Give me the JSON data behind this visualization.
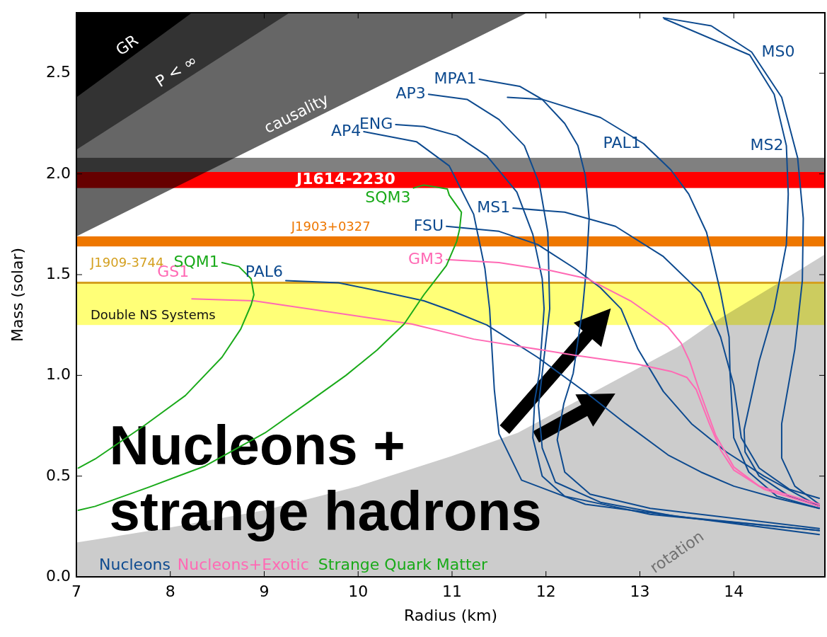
{
  "chart_data": {
    "type": "line",
    "xlabel": "Radius (km)",
    "ylabel": "Mass (solar)",
    "xlim": [
      7,
      14.97
    ],
    "ylim": [
      0,
      2.8
    ],
    "xticks": [
      7,
      8,
      9,
      10,
      11,
      12,
      13,
      14
    ],
    "yticks": [
      {
        "value": 0,
        "label": "0.0"
      },
      {
        "value": 0.5,
        "label": "0.5"
      },
      {
        "value": 1,
        "label": "1.0"
      },
      {
        "value": 1.5,
        "label": "1.5"
      },
      {
        "value": 2,
        "label": "2.0"
      },
      {
        "value": 2.5,
        "label": "2.5"
      }
    ],
    "series": [
      {
        "type": "area",
        "name": "rotation",
        "color": "#cccccc",
        "x": [
          7,
          8,
          9,
          10,
          11,
          11.7,
          13.4,
          13.74,
          14.48,
          14.97
        ],
        "values": [
          0.17,
          0.245,
          0.33,
          0.45,
          0.6,
          0.715,
          1.14,
          1.25,
          1.46,
          1.6
        ]
      },
      {
        "type": "area",
        "name": "causality",
        "color": "#666666",
        "x": [
          7,
          11.8
        ],
        "values": [
          1.69,
          2.8
        ]
      },
      {
        "type": "area",
        "name": "P < ∞",
        "color": "#333333",
        "x": [
          7,
          9.27
        ],
        "values": [
          2.12,
          2.8
        ]
      },
      {
        "type": "area",
        "name": "GR",
        "color": "#000000",
        "x": [
          7,
          8.23
        ],
        "values": [
          2.38,
          2.8
        ]
      },
      {
        "name": "AP4",
        "color": "#0d4a8f",
        "x": [
          10.06,
          10.62,
          10.97,
          11.23,
          11.35,
          11.4,
          11.45,
          11.5,
          11.74,
          12.42,
          14.91
        ],
        "values": [
          2.21,
          2.16,
          2.04,
          1.8,
          1.53,
          1.33,
          0.93,
          0.71,
          0.48,
          0.36,
          0.21
        ]
      },
      {
        "name": "ENG",
        "color": "#0d4a8f",
        "x": [
          10.4,
          10.7,
          11.05,
          11.37,
          11.69,
          11.86,
          11.96,
          11.98,
          11.93,
          11.88,
          11.86,
          11.96,
          12.2,
          13.11,
          14.91
        ],
        "values": [
          2.245,
          2.235,
          2.19,
          2.09,
          1.91,
          1.7,
          1.48,
          1.33,
          1.01,
          0.875,
          0.69,
          0.5,
          0.4,
          0.31,
          0.23
        ]
      },
      {
        "name": "AP3",
        "color": "#0d4a8f",
        "x": [
          10.75,
          11.16,
          11.5,
          11.77,
          11.93,
          12.02,
          12.04,
          11.96,
          11.92,
          11.96,
          12.1,
          12.58,
          13.38,
          14.91
        ],
        "values": [
          2.395,
          2.37,
          2.27,
          2.14,
          1.95,
          1.71,
          1.33,
          1.01,
          0.85,
          0.64,
          0.47,
          0.37,
          0.3,
          0.23
        ]
      },
      {
        "name": "MPA1",
        "color": "#0d4a8f",
        "x": [
          11.29,
          11.72,
          11.96,
          12.2,
          12.34,
          12.42,
          12.46,
          12.43,
          12.39,
          12.29,
          12.19,
          12.12,
          12.2,
          12.47,
          13.11,
          14.91
        ],
        "values": [
          2.47,
          2.435,
          2.37,
          2.25,
          2.14,
          1.99,
          1.78,
          1.53,
          1.33,
          1.01,
          0.86,
          0.68,
          0.52,
          0.41,
          0.34,
          0.24
        ]
      },
      {
        "name": "PAL1",
        "color": "#0d4a8f",
        "x": [
          11.59,
          11.96,
          12.58,
          13.04,
          13.33,
          13.52,
          13.71,
          13.86,
          13.95,
          13.96,
          14.0,
          14.16,
          14.46,
          14.91
        ],
        "values": [
          2.38,
          2.37,
          2.28,
          2.15,
          2.02,
          1.9,
          1.71,
          1.41,
          1.19,
          1.01,
          0.69,
          0.52,
          0.4,
          0.34
        ]
      },
      {
        "name": "MS0",
        "color": "#0d4a8f",
        "x": [
          13.25,
          13.76,
          14.19,
          14.51,
          14.68,
          14.74,
          14.73,
          14.65,
          14.51,
          14.51,
          14.65,
          14.91
        ],
        "values": [
          2.775,
          2.735,
          2.605,
          2.38,
          2.08,
          1.78,
          1.47,
          1.13,
          0.76,
          0.59,
          0.45,
          0.36
        ]
      },
      {
        "name": "MS2",
        "color": "#0d4a8f",
        "x": [
          13.26,
          14.17,
          14.43,
          14.56,
          14.58,
          14.56,
          14.43,
          14.27,
          14.11,
          14.12,
          14.27,
          14.59,
          14.91
        ],
        "values": [
          2.77,
          2.59,
          2.395,
          2.14,
          1.9,
          1.65,
          1.33,
          1.07,
          0.73,
          0.62,
          0.5,
          0.4,
          0.35
        ]
      },
      {
        "name": "MS1",
        "color": "#0d4a8f",
        "x": [
          11.65,
          12.2,
          12.74,
          13.25,
          13.65,
          13.86,
          14.0,
          14.08,
          14.27,
          14.59,
          14.91
        ],
        "values": [
          1.83,
          1.81,
          1.74,
          1.59,
          1.41,
          1.19,
          0.95,
          0.69,
          0.54,
          0.435,
          0.39
        ]
      },
      {
        "name": "FSU",
        "color": "#0d4a8f",
        "x": [
          10.94,
          11.5,
          11.91,
          12.31,
          12.58,
          12.8,
          12.98,
          13.25,
          13.55,
          13.92,
          14.32,
          14.91
        ],
        "values": [
          1.74,
          1.715,
          1.65,
          1.53,
          1.435,
          1.33,
          1.13,
          0.92,
          0.76,
          0.62,
          0.5,
          0.35
        ]
      },
      {
        "name": "PAL6",
        "color": "#0d4a8f",
        "x": [
          9.23,
          9.79,
          10.31,
          10.7,
          11.0,
          11.37,
          11.91,
          12.44,
          12.85,
          13.3,
          13.65,
          14.0,
          14.46,
          14.91
        ],
        "values": [
          1.47,
          1.46,
          1.41,
          1.37,
          1.32,
          1.25,
          1.09,
          0.91,
          0.76,
          0.605,
          0.52,
          0.45,
          0.39,
          0.34
        ]
      },
      {
        "name": "GM3",
        "color": "#ff69b4",
        "x": [
          10.94,
          11.5,
          12.05,
          12.44,
          12.9,
          13.3,
          13.44,
          13.53,
          13.63,
          13.81,
          14.0,
          14.27,
          14.91
        ],
        "values": [
          1.575,
          1.56,
          1.52,
          1.48,
          1.37,
          1.24,
          1.16,
          1.07,
          0.93,
          0.7,
          0.545,
          0.45,
          0.36
        ]
      },
      {
        "name": "GS1",
        "color": "#ff69b4",
        "x": [
          8.23,
          8.89,
          10.57,
          11.23,
          11.77,
          12.31,
          12.98,
          13.33,
          13.5,
          13.6,
          13.74,
          13.86,
          14.0,
          14.32,
          14.91
        ],
        "values": [
          1.38,
          1.37,
          1.255,
          1.18,
          1.14,
          1.1,
          1.055,
          1.02,
          0.99,
          0.93,
          0.76,
          0.63,
          0.53,
          0.435,
          0.35
        ]
      },
      {
        "name": "SQM1",
        "color": "#1aaa1a",
        "x": [
          8.55,
          8.73,
          8.86,
          8.89,
          8.86,
          8.75,
          8.55,
          8.16,
          7.72,
          7.2,
          7.02
        ],
        "values": [
          1.56,
          1.54,
          1.48,
          1.4,
          1.35,
          1.23,
          1.09,
          0.9,
          0.75,
          0.585,
          0.54
        ]
      },
      {
        "name": "SQM3",
        "color": "#1aaa1a",
        "x": [
          10.59,
          10.7,
          10.95,
          10.97,
          11.1,
          11.08,
          11.05,
          10.94,
          10.8,
          10.7,
          10.49,
          10.2,
          9.87,
          9.48,
          9.01,
          8.37,
          7.77,
          7.2,
          7.02
        ],
        "values": [
          1.93,
          1.945,
          1.925,
          1.895,
          1.81,
          1.725,
          1.665,
          1.545,
          1.46,
          1.4,
          1.255,
          1.125,
          1.0,
          0.87,
          0.715,
          0.55,
          0.445,
          0.35,
          0.33
        ]
      }
    ],
    "bands": [
      {
        "axis": "y",
        "from": 2.01,
        "to": 2.08,
        "color": "#808080"
      },
      {
        "axis": "y",
        "from": 1.93,
        "to": 2.01,
        "label": "J1614-2230",
        "color": "#ff0000"
      },
      {
        "axis": "y",
        "from": 1.64,
        "to": 1.69,
        "label": "J1903+0327",
        "color": "#ee7700"
      },
      {
        "axis": "y",
        "from": 1.25,
        "to": 1.46,
        "label": "Double NS Systems",
        "color": "#ffff77"
      }
    ],
    "ref_lines": [
      {
        "axis": "y",
        "value": 1.46,
        "label": "J1909-3744",
        "color": "#d4a020"
      }
    ],
    "annotations": [
      "Nucleons",
      "Nucleons+Exotic",
      "Strange Quark Matter",
      "Nucleons + strange hadrons"
    ]
  }
}
